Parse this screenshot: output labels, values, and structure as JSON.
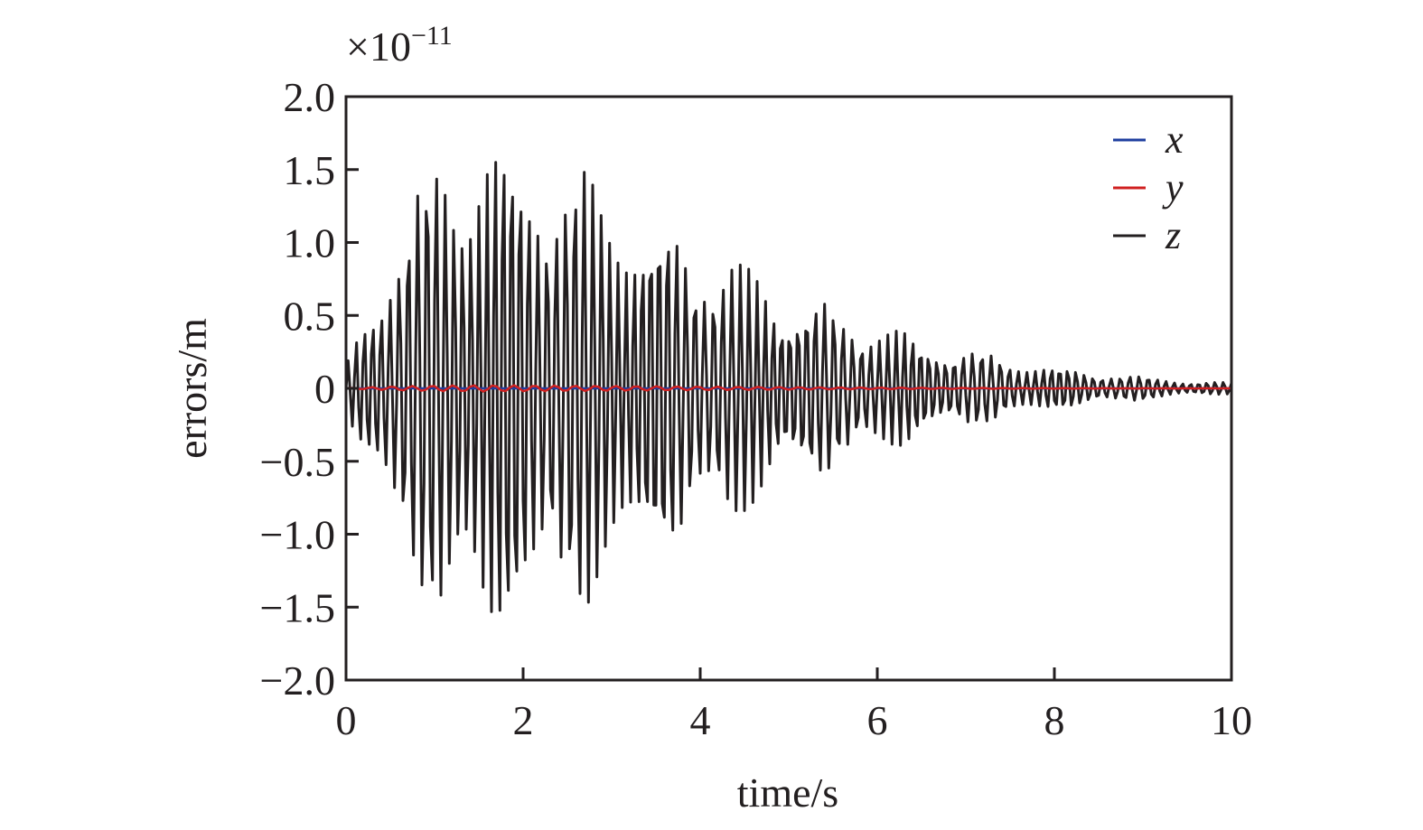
{
  "chart_data": {
    "type": "line",
    "xlabel": "time/s",
    "ylabel": "errors/m",
    "y_scale_note": "×10",
    "y_scale_exponent": "−11",
    "xlim": [
      0,
      10
    ],
    "ylim": [
      -2.0,
      2.0
    ],
    "x_ticks": [
      0,
      2,
      4,
      6,
      8,
      10
    ],
    "x_tick_labels": [
      "0",
      "2",
      "4",
      "6",
      "8",
      "10"
    ],
    "y_ticks": [
      2.0,
      1.5,
      1.0,
      0.5,
      0,
      -0.5,
      -1.0,
      -1.5,
      -2.0
    ],
    "y_tick_labels": [
      "2.0",
      "1.5",
      "1.0",
      "0.5",
      "0",
      "−0.5",
      "−1.0",
      "−1.5",
      "−2.0"
    ],
    "grid": false,
    "legend_position": "top-right",
    "z_envelope": {
      "t": [
        0,
        0.5,
        1.0,
        1.5,
        2.0,
        2.5,
        3.0,
        3.5,
        4.0,
        4.5,
        5.0,
        5.5,
        6.0,
        6.5,
        7.0,
        7.5,
        8.0,
        8.5,
        9.0,
        9.5,
        10.0
      ],
      "amplitude": [
        0.15,
        1.0,
        1.6,
        1.8,
        1.7,
        1.55,
        1.4,
        1.2,
        1.0,
        0.85,
        0.7,
        0.55,
        0.45,
        0.35,
        0.27,
        0.2,
        0.15,
        0.11,
        0.08,
        0.05,
        0.04
      ],
      "dominant_period": 0.1
    },
    "series": [
      {
        "name": "x",
        "color": "#1f3f9f",
        "values_constant": 0
      },
      {
        "name": "y",
        "color": "#d02020",
        "values_constant": 0
      },
      {
        "name": "z",
        "color": "#231f20",
        "values_ref": "z_envelope"
      }
    ]
  }
}
